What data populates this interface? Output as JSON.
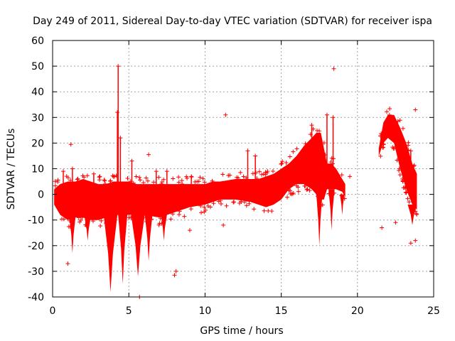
{
  "chart_data": {
    "type": "scatter",
    "title": "Day 249 of 2011, Sidereal Day-to-day VTEC variation (SDTVAR) for receiver ispa",
    "xlabel": "GPS time / hours",
    "ylabel": "SDTVAR / TECUs",
    "xlim": [
      0,
      25
    ],
    "ylim": [
      -40,
      60
    ],
    "x_ticks": [
      0,
      5,
      10,
      15,
      20,
      25
    ],
    "y_ticks": [
      -40,
      -30,
      -20,
      -10,
      0,
      10,
      20,
      30,
      40,
      50,
      60
    ],
    "grid": true,
    "marker": "+",
    "series": [
      {
        "name": "SDTVAR",
        "color": "#ff0000",
        "band_upper": [
          [
            0.1,
            2
          ],
          [
            0.5,
            4
          ],
          [
            1,
            5
          ],
          [
            1.5,
            5
          ],
          [
            2,
            6
          ],
          [
            2.5,
            5
          ],
          [
            3,
            4
          ],
          [
            3.5,
            4
          ],
          [
            4,
            5
          ],
          [
            4.5,
            5
          ],
          [
            5,
            5
          ],
          [
            5.5,
            4
          ],
          [
            6,
            4
          ],
          [
            7,
            4
          ],
          [
            8,
            4
          ],
          [
            9,
            4
          ],
          [
            10,
            4
          ],
          [
            10.5,
            5
          ],
          [
            11,
            5
          ],
          [
            12,
            6
          ],
          [
            13,
            6
          ],
          [
            13.5,
            6
          ],
          [
            14,
            7
          ],
          [
            14.5,
            8
          ],
          [
            15,
            10
          ],
          [
            15.5,
            12
          ],
          [
            16,
            15
          ],
          [
            16.5,
            19
          ],
          [
            17,
            22
          ],
          [
            17.3,
            24
          ],
          [
            17.6,
            24
          ],
          [
            17.8,
            18
          ],
          [
            18,
            12
          ],
          [
            18.3,
            12
          ],
          [
            18.6,
            10
          ],
          [
            19,
            6
          ],
          [
            19.2,
            4
          ]
        ],
        "band_lower": [
          [
            0.1,
            -4
          ],
          [
            0.5,
            -8
          ],
          [
            1,
            -10
          ],
          [
            1.5,
            -9
          ],
          [
            2,
            -9
          ],
          [
            2.5,
            -10
          ],
          [
            3,
            -10
          ],
          [
            3.5,
            -9
          ],
          [
            4,
            -8
          ],
          [
            4.5,
            -8
          ],
          [
            5,
            -8
          ],
          [
            5.5,
            -8
          ],
          [
            6,
            -8
          ],
          [
            7,
            -9
          ],
          [
            8,
            -7
          ],
          [
            9,
            -5
          ],
          [
            10,
            -4
          ],
          [
            10.5,
            -3
          ],
          [
            11,
            -2
          ],
          [
            12,
            -2
          ],
          [
            13,
            -3
          ],
          [
            13.5,
            -4
          ],
          [
            14,
            -5
          ],
          [
            14.5,
            -4
          ],
          [
            15,
            -2
          ],
          [
            15.5,
            2
          ],
          [
            16,
            4
          ],
          [
            16.5,
            4
          ],
          [
            17,
            2
          ],
          [
            17.3,
            0
          ],
          [
            17.6,
            -2
          ],
          [
            17.8,
            -2
          ],
          [
            18,
            2
          ],
          [
            18.3,
            2
          ],
          [
            18.6,
            2
          ],
          [
            19,
            1
          ],
          [
            19.2,
            -1
          ]
        ],
        "band2_upper": [
          [
            21.4,
            18
          ],
          [
            21.7,
            28
          ],
          [
            22,
            31
          ],
          [
            22.4,
            31
          ],
          [
            22.8,
            26
          ],
          [
            23.2,
            20
          ],
          [
            23.6,
            12
          ],
          [
            23.9,
            8
          ]
        ],
        "band2_lower": [
          [
            21.4,
            15
          ],
          [
            21.7,
            20
          ],
          [
            22,
            22
          ],
          [
            22.4,
            20
          ],
          [
            22.8,
            10
          ],
          [
            23.2,
            2
          ],
          [
            23.6,
            -4
          ],
          [
            23.9,
            -6
          ]
        ],
        "dips": [
          {
            "x": 3.8,
            "width": 0.45,
            "from": -8,
            "to": -38
          },
          {
            "x": 4.6,
            "width": 0.3,
            "from": -8,
            "to": -35
          },
          {
            "x": 5.6,
            "width": 0.45,
            "from": -8,
            "to": -32
          },
          {
            "x": 6.3,
            "width": 0.25,
            "from": -8,
            "to": -26
          },
          {
            "x": 2.3,
            "width": 0.2,
            "from": -9,
            "to": -18
          },
          {
            "x": 1.3,
            "width": 0.2,
            "from": -9,
            "to": -23
          },
          {
            "x": 7.3,
            "width": 0.2,
            "from": -8,
            "to": -18
          },
          {
            "x": 17.5,
            "width": 0.2,
            "from": 0,
            "to": -20
          },
          {
            "x": 18.3,
            "width": 0.2,
            "from": 2,
            "to": -14
          },
          {
            "x": 19.0,
            "width": 0.15,
            "from": 0,
            "to": -8
          },
          {
            "x": 23.6,
            "width": 0.3,
            "from": -4,
            "to": -12
          }
        ],
        "spikes": [
          {
            "x": 4.3,
            "top": 50,
            "bottom": 2
          },
          {
            "x": 4.25,
            "top": 32,
            "bottom": 4
          },
          {
            "x": 4.45,
            "top": 22,
            "bottom": 4
          },
          {
            "x": 0.7,
            "top": 9,
            "bottom": 2
          },
          {
            "x": 1.3,
            "top": 10,
            "bottom": 4
          },
          {
            "x": 2.7,
            "top": 8,
            "bottom": 4
          },
          {
            "x": 5.2,
            "top": 13,
            "bottom": 4
          },
          {
            "x": 6.8,
            "top": 9,
            "bottom": 4
          },
          {
            "x": 7.5,
            "top": 9,
            "bottom": 4
          },
          {
            "x": 9.1,
            "top": 7,
            "bottom": 4
          },
          {
            "x": 12.8,
            "top": 17,
            "bottom": 6
          },
          {
            "x": 13.3,
            "top": 15,
            "bottom": 6
          },
          {
            "x": 17.0,
            "top": 27,
            "bottom": 19
          },
          {
            "x": 18.0,
            "top": 31,
            "bottom": 10
          },
          {
            "x": 18.4,
            "top": 30,
            "bottom": 10
          },
          {
            "x": 22.1,
            "top": 31,
            "bottom": 25
          },
          {
            "x": 23.5,
            "top": 17,
            "bottom": 8
          }
        ],
        "outliers": [
          [
            1.2,
            19.5
          ],
          [
            3.1,
            7
          ],
          [
            6.3,
            15.5
          ],
          [
            11.35,
            31
          ],
          [
            18.45,
            49
          ],
          [
            23.8,
            33
          ],
          [
            5.7,
            -40
          ],
          [
            8.1,
            -30
          ],
          [
            8.0,
            -31.5
          ],
          [
            1.0,
            -27
          ],
          [
            23.5,
            -19
          ],
          [
            23.8,
            -18
          ],
          [
            22.5,
            -11
          ],
          [
            21.6,
            -13
          ],
          [
            19.5,
            7
          ],
          [
            14.1,
            9
          ],
          [
            11.2,
            -12
          ],
          [
            9.0,
            -14
          ]
        ]
      }
    ]
  }
}
